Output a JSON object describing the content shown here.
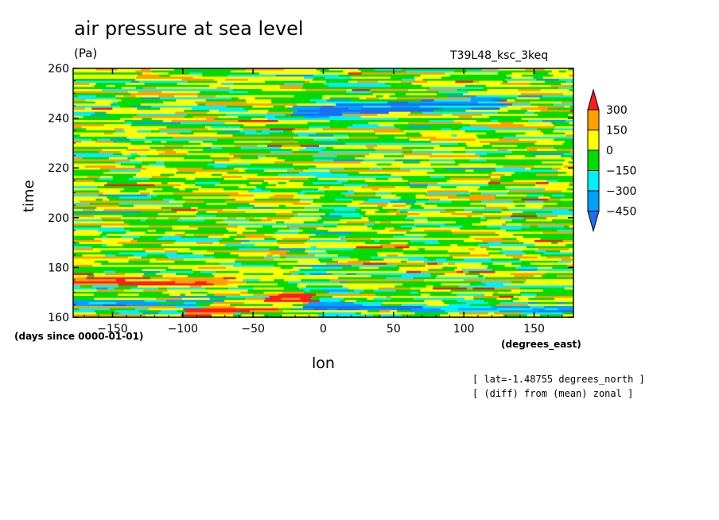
{
  "chart_data": {
    "type": "heatmap",
    "title": "air pressure at sea level",
    "units": "(Pa)",
    "run_name": "T39L48_ksc_3keq",
    "xlabel": "lon",
    "xunits": "(degrees_east)",
    "ylabel": "time",
    "yunits": "(days since 0000-01-01)",
    "xlim": [
      -178,
      178
    ],
    "ylim": [
      160,
      260
    ],
    "xticks": [
      -150,
      -100,
      -50,
      0,
      50,
      100,
      150
    ],
    "yticks": [
      160,
      180,
      200,
      220,
      240,
      260
    ],
    "colorbar": {
      "levels": [
        -450,
        -300,
        -150,
        0,
        150,
        300
      ],
      "colors": [
        "#1e6ef0",
        "#00a0ff",
        "#00f0ff",
        "#00dc00",
        "#ffff00",
        "#ffa000",
        "#ff1e1e"
      ],
      "extend": "both"
    },
    "notes": [
      "[ lat=-1.48755 degrees_north ]",
      "[ (diff) from (mean) zonal ]"
    ],
    "features": [
      {
        "kind": "positive streak",
        "x_range": [
          -95,
          -10
        ],
        "y": 163
      },
      {
        "kind": "negative band",
        "x_range": [
          -20,
          120
        ],
        "y": 245
      },
      {
        "kind": "negative band",
        "x_range": [
          -178,
          178
        ],
        "y": 165
      },
      {
        "kind": "positive band",
        "x_range": [
          -178,
          -60
        ],
        "y": 175
      }
    ]
  }
}
